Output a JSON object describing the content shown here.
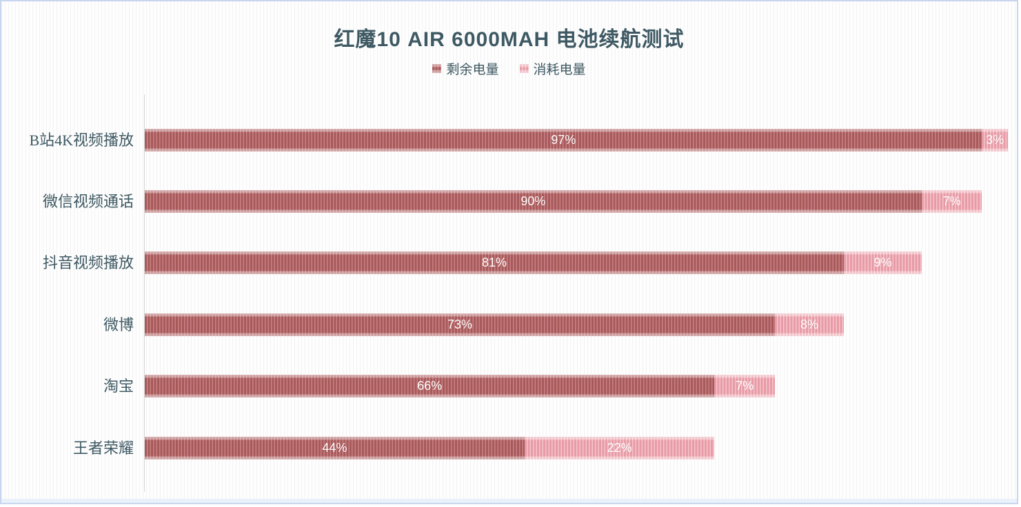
{
  "title": "红魔10 AIR 6000MAH 电池续航测试",
  "chart_data": {
    "type": "bar",
    "orientation": "horizontal",
    "stacked": true,
    "title": "红魔10 AIR 6000MAH 电池续航测试",
    "categories": [
      "B站4K视频播放",
      "微信视频通话",
      "抖音视频播放",
      "微博",
      "淘宝",
      "王者荣耀"
    ],
    "series": [
      {
        "name": "剩余电量",
        "values": [
          97,
          90,
          81,
          73,
          66,
          44
        ],
        "labels": [
          "97%",
          "90%",
          "81%",
          "73%",
          "66%",
          "44%"
        ],
        "color": "#a65a5a",
        "stripe_color": "#cb8186"
      },
      {
        "name": "消耗电量",
        "values": [
          3,
          7,
          9,
          8,
          7,
          22
        ],
        "labels": [
          "3%",
          "7%",
          "9%",
          "8%",
          "7%",
          "22%"
        ],
        "color": "#e79ba7",
        "stripe_color": "#f6c6cb"
      }
    ],
    "value_suffix": "%",
    "xlim": [
      0,
      100
    ],
    "grid": "off",
    "legend_position": "top",
    "value_label_color": "#ffffff",
    "text_color": "#3e5963",
    "axis_color": "#d5d5d5"
  }
}
